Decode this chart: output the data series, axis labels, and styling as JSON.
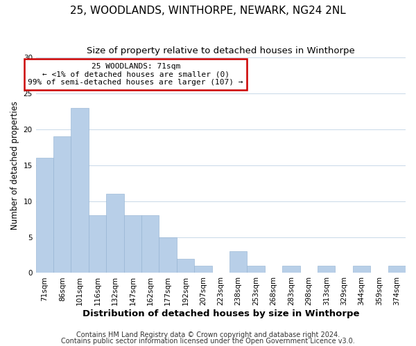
{
  "title": "25, WOODLANDS, WINTHORPE, NEWARK, NG24 2NL",
  "subtitle": "Size of property relative to detached houses in Winthorpe",
  "xlabel": "Distribution of detached houses by size in Winthorpe",
  "ylabel": "Number of detached properties",
  "bar_labels": [
    "71sqm",
    "86sqm",
    "101sqm",
    "116sqm",
    "132sqm",
    "147sqm",
    "162sqm",
    "177sqm",
    "192sqm",
    "207sqm",
    "223sqm",
    "238sqm",
    "253sqm",
    "268sqm",
    "283sqm",
    "298sqm",
    "313sqm",
    "329sqm",
    "344sqm",
    "359sqm",
    "374sqm"
  ],
  "bar_values": [
    16,
    19,
    23,
    8,
    11,
    8,
    8,
    5,
    2,
    1,
    0,
    3,
    1,
    0,
    1,
    0,
    1,
    0,
    1,
    0,
    1
  ],
  "highlight_index": 0,
  "bar_color": "#b8cfe8",
  "bar_edge_color": "#8fb0d0",
  "annotation_title": "25 WOODLANDS: 71sqm",
  "annotation_line1": "← <1% of detached houses are smaller (0)",
  "annotation_line2": "99% of semi-detached houses are larger (107) →",
  "annotation_box_color": "#ffffff",
  "annotation_box_edge": "#cc0000",
  "ylim": [
    0,
    30
  ],
  "yticks": [
    0,
    5,
    10,
    15,
    20,
    25,
    30
  ],
  "background_color": "#ffffff",
  "grid_color": "#c8d8e8",
  "title_fontsize": 11,
  "subtitle_fontsize": 9.5,
  "xlabel_fontsize": 9.5,
  "ylabel_fontsize": 8.5,
  "tick_fontsize": 7.5,
  "annotation_fontsize": 8,
  "footer_fontsize": 7
}
